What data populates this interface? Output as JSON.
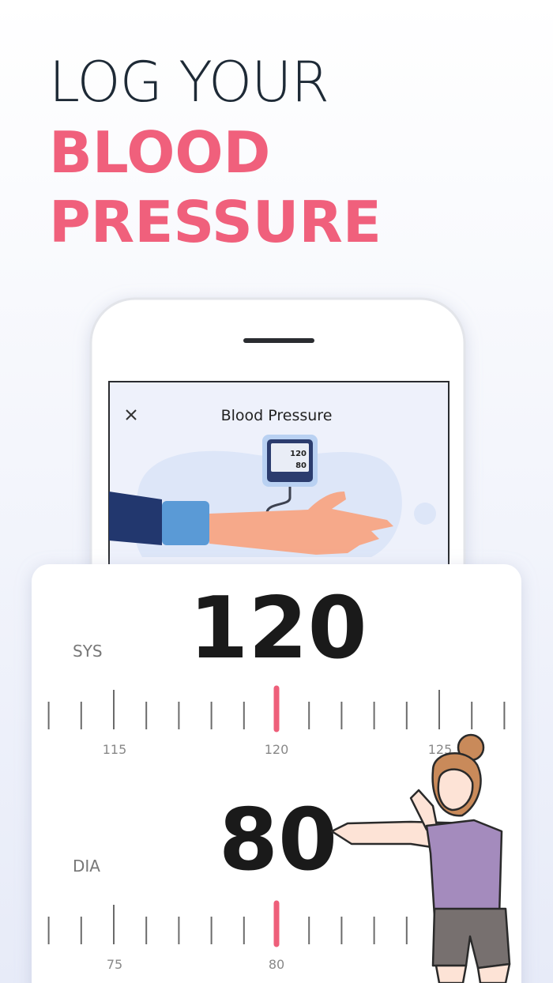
{
  "headline": {
    "line1": "LOG YOUR",
    "line2": "BLOOD",
    "line3": "PRESSURE"
  },
  "phone": {
    "title": "Blood Pressure",
    "monitor": {
      "sys": 120,
      "dia": 80
    }
  },
  "readings": [
    {
      "label": "SYS",
      "value": 120,
      "ruler": [
        115,
        120,
        125
      ]
    },
    {
      "label": "DIA",
      "value": 80,
      "ruler": [
        75,
        80
      ]
    }
  ]
}
